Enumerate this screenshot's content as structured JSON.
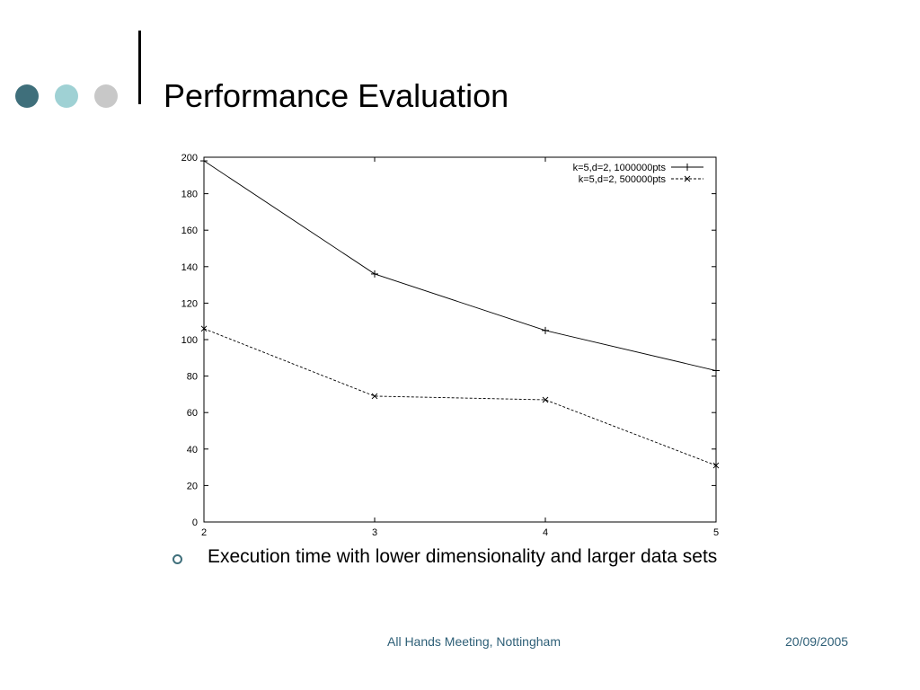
{
  "slide": {
    "title": "Performance Evaluation",
    "bullet": "Execution time with lower dimensionality and larger data sets",
    "footer_center": "All Hands Meeting, Nottingham",
    "footer_date": "20/09/2005"
  },
  "colors": {
    "dot_dark": "#3f6f7b",
    "dot_teal": "#9fd1d4",
    "dot_gray": "#c8c8c8",
    "bullet": "#3f6f7b",
    "footer_text": "#2e5f77"
  },
  "chart_data": {
    "type": "line",
    "title": "",
    "xlabel": "",
    "ylabel": "",
    "xlim": [
      2,
      5
    ],
    "ylim": [
      0,
      200
    ],
    "x_ticks": [
      2,
      3,
      4,
      5
    ],
    "y_ticks": [
      0,
      20,
      40,
      60,
      80,
      100,
      120,
      140,
      160,
      180,
      200
    ],
    "grid": false,
    "legend_position": "top-right",
    "series": [
      {
        "name": "k=5,d=2, 1000000pts",
        "marker": "+",
        "line": "solid",
        "x": [
          2,
          3,
          4,
          5
        ],
        "y": [
          198,
          136,
          105,
          83
        ]
      },
      {
        "name": "k=5,d=2, 500000pts",
        "marker": "x",
        "line": "dashed",
        "x": [
          2,
          3,
          4,
          5
        ],
        "y": [
          106,
          69,
          67,
          31
        ]
      }
    ]
  }
}
